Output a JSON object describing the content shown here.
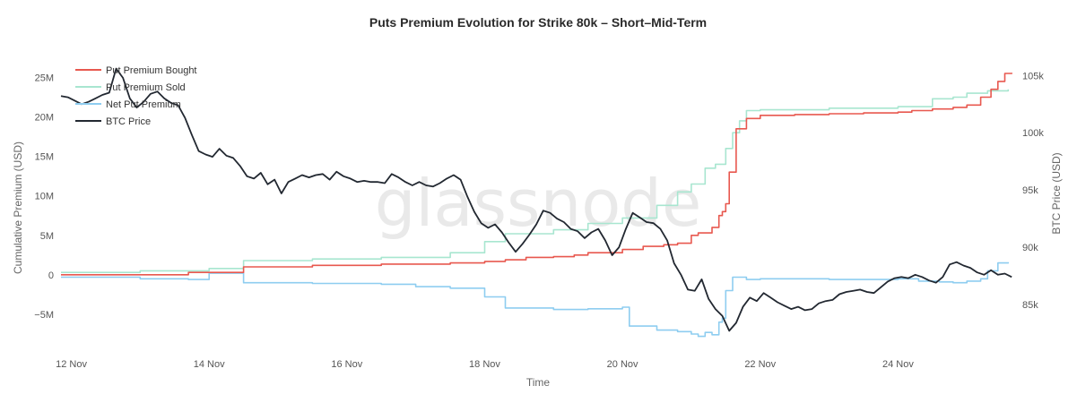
{
  "chart_data": {
    "type": "line",
    "title": "Puts Premium Evolution for Strike 80k – Short–Mid-Term",
    "xlabel": "Time",
    "ylabel_left": "Cumulative Premium (USD)",
    "ylabel_right": "BTC Price (USD)",
    "watermark": "glassnode",
    "x_range": [
      11.85,
      25.7
    ],
    "x_ticks": [
      {
        "value": 12,
        "label": "12 Nov"
      },
      {
        "value": 14,
        "label": "14 Nov"
      },
      {
        "value": 16,
        "label": "16 Nov"
      },
      {
        "value": 18,
        "label": "18 Nov"
      },
      {
        "value": 20,
        "label": "20 Nov"
      },
      {
        "value": 22,
        "label": "22 Nov"
      },
      {
        "value": 24,
        "label": "24 Nov"
      }
    ],
    "y_left_range": [
      -10000000,
      28000000
    ],
    "y_left_ticks": [
      {
        "value": -5000000,
        "label": "−5M"
      },
      {
        "value": 0,
        "label": "0"
      },
      {
        "value": 5000000,
        "label": "5M"
      },
      {
        "value": 10000000,
        "label": "10M"
      },
      {
        "value": 15000000,
        "label": "15M"
      },
      {
        "value": 20000000,
        "label": "20M"
      },
      {
        "value": 25000000,
        "label": "25M"
      }
    ],
    "y_right_range": [
      80700,
      106900
    ],
    "y_right_ticks": [
      {
        "value": 85000,
        "label": "85k"
      },
      {
        "value": 90000,
        "label": "90k"
      },
      {
        "value": 95000,
        "label": "95k"
      },
      {
        "value": 100000,
        "label": "100k"
      },
      {
        "value": 105000,
        "label": "105k"
      }
    ],
    "legend_position": "top-left",
    "grid": false,
    "series": [
      {
        "name": "Put Premium Bought",
        "axis": "left",
        "color": "#e8584f",
        "x": [
          11.85,
          13.7,
          14.5,
          15.5,
          16.5,
          17.5,
          18.0,
          18.3,
          18.6,
          19.0,
          19.3,
          19.5,
          20.0,
          20.3,
          20.6,
          20.8,
          21.0,
          21.1,
          21.3,
          21.4,
          21.45,
          21.5,
          21.55,
          21.65,
          21.8,
          22.0,
          22.5,
          23.0,
          23.5,
          24.0,
          24.2,
          24.5,
          24.8,
          25.0,
          25.2,
          25.35,
          25.45,
          25.55,
          25.65
        ],
        "y": [
          0.0,
          0.3,
          1.0,
          1.2,
          1.35,
          1.5,
          1.7,
          1.9,
          2.2,
          2.3,
          2.5,
          2.8,
          3.2,
          3.6,
          3.8,
          4.0,
          5.0,
          5.3,
          6.0,
          7.5,
          8.0,
          9.0,
          13.0,
          18.5,
          19.8,
          20.2,
          20.3,
          20.4,
          20.5,
          20.6,
          20.8,
          21.0,
          21.2,
          21.5,
          22.5,
          23.5,
          24.5,
          25.5,
          25.6
        ]
      },
      {
        "name": "Put Premium Sold",
        "axis": "left",
        "color": "#a8e6d0",
        "x": [
          11.85,
          13.0,
          14.0,
          14.5,
          15.5,
          16.5,
          17.5,
          18.0,
          18.3,
          19.0,
          19.5,
          20.0,
          20.5,
          20.8,
          21.0,
          21.2,
          21.35,
          21.5,
          21.6,
          21.7,
          21.8,
          22.0,
          23.0,
          24.0,
          24.5,
          24.8,
          25.0,
          25.3,
          25.6
        ],
        "y": [
          0.3,
          0.5,
          0.8,
          1.8,
          2.0,
          2.2,
          2.8,
          4.2,
          5.2,
          5.7,
          6.5,
          7.2,
          8.8,
          10.5,
          11.5,
          13.5,
          14.0,
          16.0,
          18.0,
          19.5,
          20.8,
          20.9,
          21.1,
          21.3,
          22.3,
          22.5,
          23.0,
          23.3,
          23.5
        ]
      },
      {
        "name": "Net Put Premium",
        "axis": "left",
        "color": "#8ecdf0",
        "x": [
          11.85,
          13.0,
          13.7,
          14.0,
          14.5,
          15.5,
          16.5,
          17.0,
          17.5,
          18.0,
          18.3,
          19.0,
          19.5,
          20.0,
          20.1,
          20.5,
          20.8,
          21.0,
          21.1,
          21.2,
          21.3,
          21.4,
          21.45,
          21.5,
          21.6,
          21.8,
          22.0,
          23.0,
          24.0,
          24.3,
          24.6,
          24.8,
          25.0,
          25.2,
          25.3,
          25.45,
          25.6
        ],
        "y": [
          -0.3,
          -0.5,
          -0.6,
          0.2,
          -1.0,
          -1.1,
          -1.2,
          -1.5,
          -1.7,
          -2.8,
          -4.2,
          -4.4,
          -4.3,
          -4.1,
          -6.5,
          -7.0,
          -7.2,
          -7.5,
          -7.8,
          -7.3,
          -7.6,
          -6.0,
          -5.5,
          -2.0,
          -0.3,
          -0.6,
          -0.5,
          -0.6,
          -0.5,
          -0.8,
          -0.9,
          -1.0,
          -0.8,
          -0.5,
          0.5,
          1.5,
          1.6
        ]
      },
      {
        "name": "BTC Price",
        "axis": "right",
        "color": "#222831",
        "x": [
          11.85,
          11.95,
          12.05,
          12.15,
          12.25,
          12.35,
          12.45,
          12.55,
          12.65,
          12.75,
          12.85,
          12.95,
          13.05,
          13.15,
          13.25,
          13.35,
          13.45,
          13.55,
          13.65,
          13.75,
          13.85,
          13.95,
          14.05,
          14.15,
          14.25,
          14.35,
          14.45,
          14.55,
          14.65,
          14.75,
          14.85,
          14.95,
          15.05,
          15.15,
          15.25,
          15.35,
          15.45,
          15.55,
          15.65,
          15.75,
          15.85,
          15.95,
          16.05,
          16.15,
          16.25,
          16.35,
          16.45,
          16.55,
          16.65,
          16.75,
          16.85,
          16.95,
          17.05,
          17.15,
          17.25,
          17.35,
          17.45,
          17.55,
          17.65,
          17.75,
          17.85,
          17.95,
          18.05,
          18.15,
          18.25,
          18.35,
          18.45,
          18.55,
          18.65,
          18.75,
          18.85,
          18.95,
          19.05,
          19.15,
          19.25,
          19.35,
          19.45,
          19.55,
          19.65,
          19.75,
          19.85,
          19.95,
          20.05,
          20.15,
          20.25,
          20.35,
          20.45,
          20.55,
          20.65,
          20.75,
          20.85,
          20.95,
          21.05,
          21.15,
          21.25,
          21.35,
          21.45,
          21.55,
          21.65,
          21.75,
          21.85,
          21.95,
          22.05,
          22.15,
          22.25,
          22.35,
          22.45,
          22.55,
          22.65,
          22.75,
          22.85,
          22.95,
          23.05,
          23.15,
          23.25,
          23.35,
          23.45,
          23.55,
          23.65,
          23.75,
          23.85,
          23.95,
          24.05,
          24.15,
          24.25,
          24.35,
          24.45,
          24.55,
          24.65,
          24.75,
          24.85,
          24.95,
          25.05,
          25.15,
          25.25,
          25.35,
          25.45,
          25.55,
          25.65
        ],
        "y": [
          103200,
          103100,
          102800,
          102500,
          102700,
          103000,
          103300,
          103500,
          105600,
          104800,
          103000,
          102200,
          102700,
          103400,
          103600,
          103000,
          102600,
          102400,
          101300,
          99800,
          98400,
          98100,
          97900,
          98600,
          98000,
          97800,
          97100,
          96200,
          96000,
          96500,
          95500,
          95900,
          94700,
          95700,
          96000,
          96300,
          96100,
          96300,
          96400,
          95900,
          96600,
          96200,
          96000,
          95700,
          95800,
          95700,
          95700,
          95600,
          96400,
          96100,
          95700,
          95400,
          95700,
          95400,
          95300,
          95600,
          96000,
          96300,
          95900,
          94400,
          93100,
          92100,
          91700,
          92000,
          91300,
          90400,
          89600,
          90300,
          91100,
          92000,
          93200,
          93000,
          92500,
          92200,
          91600,
          91400,
          90800,
          91300,
          91600,
          90600,
          89300,
          90000,
          91600,
          93000,
          92600,
          92200,
          92100,
          91600,
          90600,
          88600,
          87600,
          86300,
          86200,
          87200,
          85500,
          84600,
          84000,
          82700,
          83400,
          84800,
          85600,
          85300,
          86000,
          85600,
          85200,
          84900,
          84600,
          84800,
          84500,
          84600,
          85100,
          85300,
          85400,
          85900,
          86100,
          86200,
          86300,
          86100,
          86000,
          86500,
          87000,
          87300,
          87400,
          87300,
          87600,
          87400,
          87100,
          86900,
          87400,
          88500,
          88700,
          88400,
          88200,
          87800,
          87600,
          88000,
          87600,
          87700,
          87400
        ]
      }
    ]
  }
}
